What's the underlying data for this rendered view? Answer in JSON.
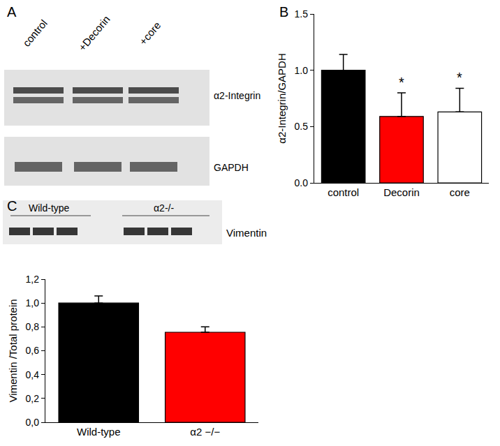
{
  "chart_data": [
    {
      "type": "bar",
      "panel_label": "B",
      "categories": [
        "control",
        "Decorin",
        "core"
      ],
      "values": [
        1.0,
        0.59,
        0.63
      ],
      "errors": [
        0.14,
        0.21,
        0.21
      ],
      "colors": [
        "#000000",
        "#ff0000",
        "#ffffff"
      ],
      "y_label": "α2-Integrin/GAPDH",
      "ylim": [
        0,
        1.5
      ],
      "yticks": [
        {
          "value": 0,
          "label": "0.0"
        },
        {
          "value": 0.5,
          "label": "0.5"
        },
        {
          "value": 1,
          "label": "1.0"
        },
        {
          "value": 1.5,
          "label": "1.5"
        }
      ],
      "annotations": [
        {
          "category": "Decorin",
          "text": "*"
        },
        {
          "category": "core",
          "text": "*"
        }
      ],
      "grid": false
    },
    {
      "type": "bar",
      "panel_label": "C",
      "categories": [
        "Wild-type",
        "α2 −/−"
      ],
      "values": [
        1.0,
        0.755
      ],
      "errors": [
        0.06,
        0.045
      ],
      "colors": [
        "#000000",
        "#ff0000"
      ],
      "y_label": "Vimentin /Total protein",
      "ylim": [
        0,
        1.2
      ],
      "yticks": [
        {
          "value": 0,
          "label": "0,0"
        },
        {
          "value": 0.2,
          "label": "0,2"
        },
        {
          "value": 0.4,
          "label": "0,4"
        },
        {
          "value": 0.6,
          "label": "0,6"
        },
        {
          "value": 0.8,
          "label": "0,8"
        },
        {
          "value": 1,
          "label": "1,0"
        },
        {
          "value": 1.2,
          "label": "1,2"
        }
      ],
      "annotations": [],
      "grid": false
    }
  ],
  "blots": [
    {
      "panel_label": "A",
      "lanes": [
        "control",
        "+Decorin",
        "+core"
      ],
      "bands": [
        "α2-Integrin",
        "GAPDH"
      ]
    },
    {
      "groups": [
        "Wild-type",
        "α2-/-"
      ],
      "bands": [
        "Vimentin"
      ]
    }
  ]
}
